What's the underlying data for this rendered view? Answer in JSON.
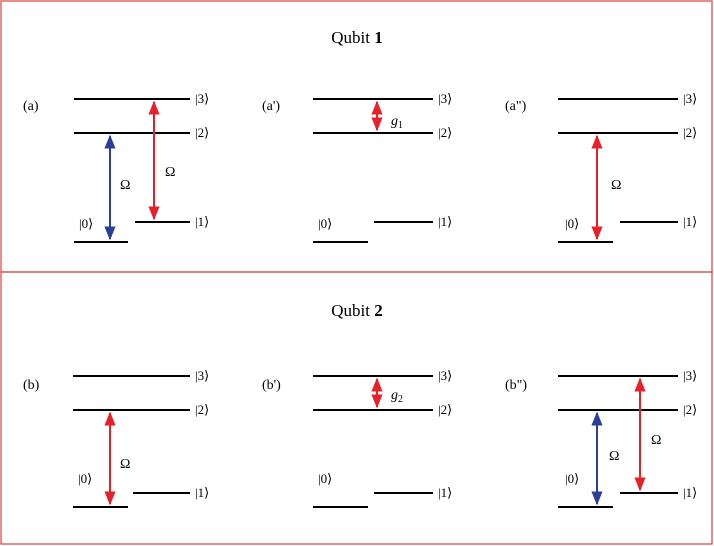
{
  "panel1": {
    "title_text": "Qubit ",
    "title_num": "1"
  },
  "panel2": {
    "title_text": "Qubit ",
    "title_num": "2"
  },
  "labels": {
    "a": "(a)",
    "a1": "(a')",
    "a2": "(a\")",
    "b": "(b)",
    "b1": "(b')",
    "b2": "(b\")"
  },
  "kets": {
    "k0": "|0⟩",
    "k1": "|1⟩",
    "k2": "|2⟩",
    "k3": "|3⟩"
  },
  "arrows": {
    "omega": "Ω",
    "g1_sym": "g",
    "g1_sub": "1",
    "g2_sym": "g",
    "g2_sub": "2"
  },
  "colors": {
    "frame": "#d94040",
    "red_arrow": "#e8202a",
    "blue_arrow": "#2b3e9c"
  }
}
